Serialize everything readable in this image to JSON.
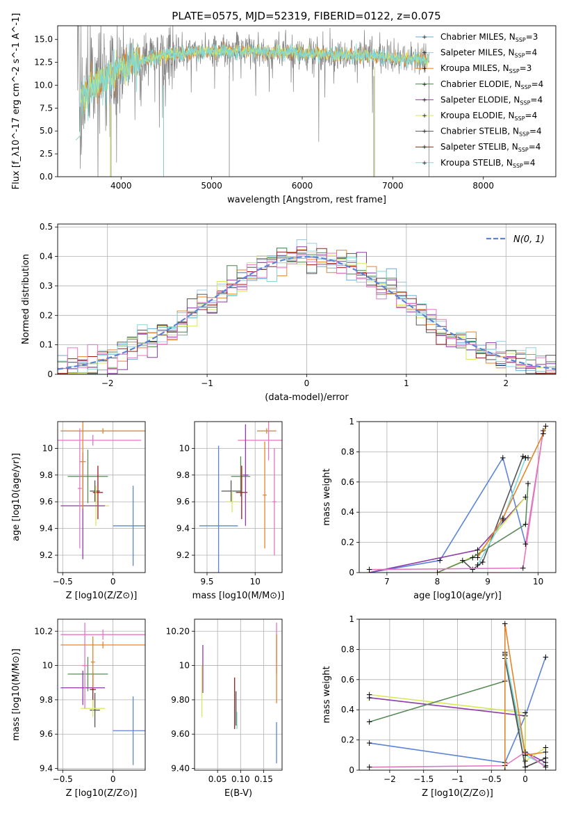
{
  "figure": {
    "title": "PLATE=0575, MJD=52319, FIBERID=0122, z=0.075"
  },
  "colors": {
    "chabrier_miles": "#6baed6",
    "salpeter_miles": "#9ecae1",
    "kroupa_miles": "#e6842a",
    "chabrier_elodie": "#4f7f4f",
    "salpeter_elodie": "#8e3aa8",
    "kroupa_elodie": "#d8e85a",
    "chabrier_stelib": "#555555",
    "salpeter_stelib": "#a01818",
    "kroupa_stelib": "#7fd8d8",
    "pink": "#e377c2",
    "blue": "#5b84d8",
    "green": "#5a8a5a",
    "orange": "#e6842a",
    "spectrum": "#808080"
  },
  "chart_data": [
    {
      "id": "spectrum",
      "type": "line",
      "xlabel": "wavelength [Angstrom, rest frame]",
      "ylabel": "Flux [f_λ10^-17 erg cm^-2 s^-1 A^-1]",
      "xlim": [
        3300,
        8800
      ],
      "ylim": [
        0,
        16.5
      ],
      "xticks": [
        4000,
        5000,
        6000,
        7000,
        8000
      ],
      "yticks": [
        0.0,
        2.5,
        5.0,
        7.5,
        10.0,
        12.5,
        15.0
      ],
      "legend_position": "top-right",
      "legend": [
        {
          "label": "Chabrier MILES, N",
          "sub": "SSP",
          "tail": "=3",
          "color": "#6baed6"
        },
        {
          "label": "Salpeter MILES, N",
          "sub": "SSP",
          "tail": "=4",
          "color": "#9ecae1"
        },
        {
          "label": "Kroupa MILES, N",
          "sub": "SSP",
          "tail": "=3",
          "color": "#e6842a"
        },
        {
          "label": "Chabrier ELODIE, N",
          "sub": "SSP",
          "tail": "=4",
          "color": "#4f7f4f"
        },
        {
          "label": "Salpeter ELODIE, N",
          "sub": "SSP",
          "tail": "=4",
          "color": "#8e3aa8"
        },
        {
          "label": "Kroupa ELODIE, N",
          "sub": "SSP",
          "tail": "=4",
          "color": "#d8e85a"
        },
        {
          "label": "Chabrier STELIB, N",
          "sub": "SSP",
          "tail": "=4",
          "color": "#555555"
        },
        {
          "label": "Salpeter STELIB, N",
          "sub": "SSP",
          "tail": "=4",
          "color": "#a01818"
        },
        {
          "label": "Kroupa STELIB, N",
          "sub": "SSP",
          "tail": "=4",
          "color": "#7fd8d8"
        }
      ],
      "continuum_x": [
        3500,
        3600,
        3700,
        3800,
        3900,
        4000,
        4100,
        4200,
        4400,
        4600,
        4800,
        5000,
        5200,
        5500,
        5800,
        6000,
        6300,
        6600,
        6900,
        7100,
        7300,
        7400
      ],
      "continuum_y": [
        8.0,
        9.0,
        10.0,
        10.5,
        11.0,
        12.0,
        12.3,
        12.6,
        13.1,
        13.4,
        13.6,
        13.7,
        13.8,
        13.7,
        13.6,
        13.5,
        13.4,
        13.3,
        13.1,
        12.9,
        12.8,
        12.7
      ]
    },
    {
      "id": "residuals",
      "type": "step",
      "xlabel": "(data-model)/error",
      "ylabel": "Normed distribution",
      "xlim": [
        -2.5,
        2.5
      ],
      "ylim": [
        0,
        0.51
      ],
      "xticks": [
        -2,
        -1,
        0,
        1,
        2
      ],
      "yticks": [
        0.0,
        0.1,
        0.2,
        0.3,
        0.4,
        0.5
      ],
      "legend": [
        {
          "label": "N(0, 1)",
          "color": "#5b84d8",
          "style": "dashed"
        }
      ],
      "legend_position": "top-right",
      "grid": true
    },
    {
      "id": "z_age",
      "type": "errorbar",
      "xlabel": "Z [log10(Z/Z⊙)]",
      "ylabel": "age [log10(age/yr)]",
      "xlim": [
        -0.55,
        0.32
      ],
      "ylim": [
        9.07,
        10.2
      ],
      "xticks": [
        -0.5,
        0.0
      ],
      "yticks": [
        9.2,
        9.4,
        9.6,
        9.8,
        10.0
      ],
      "points": [
        {
          "x": -0.1,
          "y": 10.13,
          "xerr": 0.42,
          "yerr": 0.02,
          "color": "#e6842a"
        },
        {
          "x": -0.2,
          "y": 10.06,
          "xerr": 0.48,
          "yerr": 0.04,
          "color": "#e377c2"
        },
        {
          "x": 0.2,
          "y": 9.42,
          "xerr": 0.2,
          "yerr": 0.3,
          "color": "#5b84d8"
        },
        {
          "x": -0.25,
          "y": 9.79,
          "xerr": 0.2,
          "yerr": 0.2,
          "color": "#5a8a5a"
        },
        {
          "x": -0.18,
          "y": 9.68,
          "xerr": 0.05,
          "yerr": 0.08,
          "color": "#555555"
        },
        {
          "x": -0.15,
          "y": 9.67,
          "xerr": 0.05,
          "yerr": 0.2,
          "color": "#a01818"
        },
        {
          "x": -0.17,
          "y": 9.57,
          "xerr": 0.13,
          "yerr": 0.15,
          "color": "#d8e85a"
        },
        {
          "x": -0.3,
          "y": 9.57,
          "xerr": 0.22,
          "yerr": 0.4,
          "color": "#8e3aa8"
        },
        {
          "x": -0.3,
          "y": 9.9,
          "xerr": 0.03,
          "yerr": 0.35,
          "color": "#e6842a"
        },
        {
          "x": -0.33,
          "y": 9.7,
          "xerr": 0.02,
          "yerr": 0.45,
          "color": "#e377c2"
        }
      ]
    },
    {
      "id": "mass_age",
      "type": "errorbar",
      "xlabel": "mass [log10(M/M⊙)]",
      "ylabel": "",
      "xlim": [
        9.37,
        10.28
      ],
      "ylim": [
        9.07,
        10.2
      ],
      "xticks": [
        9.5,
        10.0
      ],
      "yticks": [
        9.2,
        9.4,
        9.6,
        9.8,
        10.0
      ],
      "points": [
        {
          "x": 10.12,
          "y": 10.13,
          "xerr": 0.1,
          "yerr": 0.02,
          "color": "#e6842a"
        },
        {
          "x": 10.14,
          "y": 10.06,
          "xerr": 0.32,
          "yerr": 0.15,
          "color": "#e377c2"
        },
        {
          "x": 9.62,
          "y": 9.42,
          "xerr": 0.2,
          "yerr": 0.6,
          "color": "#5b84d8"
        },
        {
          "x": 9.85,
          "y": 9.79,
          "xerr": 0.1,
          "yerr": 0.15,
          "color": "#5a8a5a"
        },
        {
          "x": 9.75,
          "y": 9.68,
          "xerr": 0.1,
          "yerr": 0.08,
          "color": "#555555"
        },
        {
          "x": 9.86,
          "y": 9.67,
          "xerr": 0.06,
          "yerr": 0.2,
          "color": "#a01818"
        },
        {
          "x": 9.76,
          "y": 9.6,
          "xerr": 0.07,
          "yerr": 0.08,
          "color": "#d8e85a"
        },
        {
          "x": 9.9,
          "y": 9.8,
          "xerr": 0.03,
          "yerr": 0.38,
          "color": "#8e3aa8"
        },
        {
          "x": 10.1,
          "y": 9.65,
          "xerr": 0.02,
          "yerr": 0.4,
          "color": "#e6842a"
        },
        {
          "x": 10.2,
          "y": 9.6,
          "xerr": 0.02,
          "yerr": 0.4,
          "color": "#e377c2"
        }
      ]
    },
    {
      "id": "age_weight",
      "type": "line",
      "xlabel": "age [log10(age/yr)]",
      "ylabel": "mass weight",
      "xlim": [
        6.45,
        10.35
      ],
      "ylim": [
        0,
        1.0
      ],
      "xticks": [
        7,
        8,
        9,
        10
      ],
      "yticks": [
        0.0,
        0.2,
        0.4,
        0.6,
        0.8,
        1.0
      ],
      "series": [
        {
          "color": "#5b84d8",
          "x": [
            6.65,
            8.05,
            9.3,
            9.75
          ],
          "y": [
            0.0,
            0.08,
            0.76,
            0.19
          ]
        },
        {
          "color": "#8e3aa8",
          "x": [
            6.65,
            8.8,
            9.75
          ],
          "y": [
            0.0,
            0.15,
            0.5
          ]
        },
        {
          "color": "#d8e85a",
          "x": [
            8.0,
            8.8,
            9.75
          ],
          "y": [
            0.0,
            0.12,
            0.5
          ]
        },
        {
          "color": "#5a8a5a",
          "x": [
            8.0,
            8.7,
            9.75,
            9.8
          ],
          "y": [
            0.0,
            0.1,
            0.32,
            0.59
          ]
        },
        {
          "color": "#555555",
          "x": [
            8.5,
            8.7,
            8.9,
            9.7,
            9.8
          ],
          "y": [
            0.08,
            0.02,
            0.07,
            0.77,
            0.76
          ]
        },
        {
          "color": "#7fd8d8",
          "x": [
            8.8,
            9.3,
            9.75
          ],
          "y": [
            0.05,
            0.35,
            0.76
          ]
        },
        {
          "color": "#e377c2",
          "x": [
            6.65,
            9.7,
            10.1,
            9.75
          ],
          "y": [
            0.02,
            0.03,
            0.94,
            0.19
          ]
        },
        {
          "color": "#e6842a",
          "x": [
            8.8,
            9.3,
            10.1,
            10.15
          ],
          "y": [
            0.1,
            0.36,
            0.92,
            0.97
          ]
        }
      ]
    },
    {
      "id": "z_mass",
      "type": "errorbar",
      "xlabel": "Z [log10(Z/Z⊙)]",
      "ylabel": "mass [log10(M/M⊙)]",
      "xlim": [
        -0.55,
        0.32
      ],
      "ylim": [
        9.39,
        10.27
      ],
      "xticks": [
        -0.5,
        0.0
      ],
      "yticks": [
        9.4,
        9.6,
        9.8,
        10.0,
        10.2
      ],
      "points": [
        {
          "x": -0.1,
          "y": 10.12,
          "xerr": 0.42,
          "yerr": 0.02,
          "color": "#e6842a"
        },
        {
          "x": -0.1,
          "y": 10.18,
          "xerr": 0.42,
          "yerr": 0.03,
          "color": "#e377c2"
        },
        {
          "x": 0.2,
          "y": 9.62,
          "xerr": 0.2,
          "yerr": 0.2,
          "color": "#5b84d8"
        },
        {
          "x": -0.25,
          "y": 9.95,
          "xerr": 0.2,
          "yerr": 0.1,
          "color": "#5a8a5a"
        },
        {
          "x": -0.18,
          "y": 9.74,
          "xerr": 0.05,
          "yerr": 0.1,
          "color": "#555555"
        },
        {
          "x": -0.2,
          "y": 9.86,
          "xerr": 0.03,
          "yerr": 0.1,
          "color": "#a01818"
        },
        {
          "x": -0.2,
          "y": 9.75,
          "xerr": 0.12,
          "yerr": 0.05,
          "color": "#d8e85a"
        },
        {
          "x": -0.3,
          "y": 9.87,
          "xerr": 0.22,
          "yerr": 0.1,
          "color": "#8e3aa8"
        },
        {
          "x": -0.28,
          "y": 10.0,
          "xerr": 0.03,
          "yerr": 0.25,
          "color": "#e377c2"
        },
        {
          "x": -0.2,
          "y": 10.02,
          "xerr": 0.02,
          "yerr": 0.15,
          "color": "#e6842a"
        }
      ]
    },
    {
      "id": "ebv_mass",
      "type": "errorbar",
      "xlabel": "E(B-V)",
      "ylabel": "",
      "xlim": [
        0.0,
        0.19
      ],
      "ylim": [
        9.39,
        10.27
      ],
      "xticks": [
        0.05,
        0.1,
        0.15
      ],
      "yticks": [
        9.4,
        9.6,
        9.8,
        10.0,
        10.2
      ],
      "points": [
        {
          "x": 0.018,
          "y": 9.98,
          "xerr": 0,
          "yerr": 0.14,
          "color": "#8e3aa8"
        },
        {
          "x": 0.016,
          "y": 9.85,
          "xerr": 0,
          "yerr": 0.15,
          "color": "#d8e85a"
        },
        {
          "x": 0.087,
          "y": 9.78,
          "xerr": 0,
          "yerr": 0.15,
          "color": "#a01818"
        },
        {
          "x": 0.09,
          "y": 9.75,
          "xerr": 0,
          "yerr": 0.1,
          "color": "#555555"
        },
        {
          "x": 0.092,
          "y": 9.68,
          "xerr": 0,
          "yerr": 0.05,
          "color": "#7fd8d8"
        },
        {
          "x": 0.178,
          "y": 10.1,
          "xerr": 0,
          "yerr": 0.15,
          "color": "#e377c2"
        },
        {
          "x": 0.178,
          "y": 9.98,
          "xerr": 0,
          "yerr": 0.2,
          "color": "#e6842a"
        },
        {
          "x": 0.178,
          "y": 9.55,
          "xerr": 0,
          "yerr": 0.12,
          "color": "#5b84d8"
        }
      ]
    },
    {
      "id": "z_weight",
      "type": "line",
      "xlabel": "Z [log10(Z/Z⊙)]",
      "ylabel": "mass weight",
      "xlim": [
        -2.45,
        0.45
      ],
      "ylim": [
        0,
        1.0
      ],
      "xticks": [
        -2.0,
        -1.5,
        -1.0,
        -0.5,
        0.0
      ],
      "yticks": [
        0.0,
        0.2,
        0.4,
        0.6,
        0.8,
        1.0
      ],
      "series": [
        {
          "color": "#5b84d8",
          "x": [
            -2.3,
            -0.3,
            0.0,
            0.3
          ],
          "y": [
            0.18,
            0.05,
            0.36,
            0.75
          ]
        },
        {
          "color": "#8e3aa8",
          "x": [
            -2.3,
            0.0,
            0.0,
            0.3
          ],
          "y": [
            0.48,
            0.36,
            0.12,
            0.05
          ]
        },
        {
          "color": "#d8e85a",
          "x": [
            -2.3,
            0.0,
            0.0,
            0.3
          ],
          "y": [
            0.5,
            0.38,
            0.06,
            0.15
          ]
        },
        {
          "color": "#5a8a5a",
          "x": [
            -2.3,
            -0.3,
            -0.3,
            0.0,
            0.3
          ],
          "y": [
            0.32,
            0.59,
            0.78,
            0.02,
            0.08
          ]
        },
        {
          "color": "#555555",
          "x": [
            -0.3,
            -0.3,
            0.0,
            0.3
          ],
          "y": [
            0.76,
            0.74,
            0.02,
            0.08
          ]
        },
        {
          "color": "#7fd8d8",
          "x": [
            -0.3,
            0.0,
            0.3
          ],
          "y": [
            0.77,
            0.1,
            0.03
          ]
        },
        {
          "color": "#e377c2",
          "x": [
            -2.3,
            -0.3,
            0.0,
            0.3
          ],
          "y": [
            0.02,
            0.03,
            0.12,
            0.02
          ]
        },
        {
          "color": "#e6842a",
          "x": [
            -0.3,
            -0.3,
            0.0,
            0.3
          ],
          "y": [
            0.0,
            0.97,
            0.1,
            0.12
          ]
        }
      ]
    }
  ]
}
